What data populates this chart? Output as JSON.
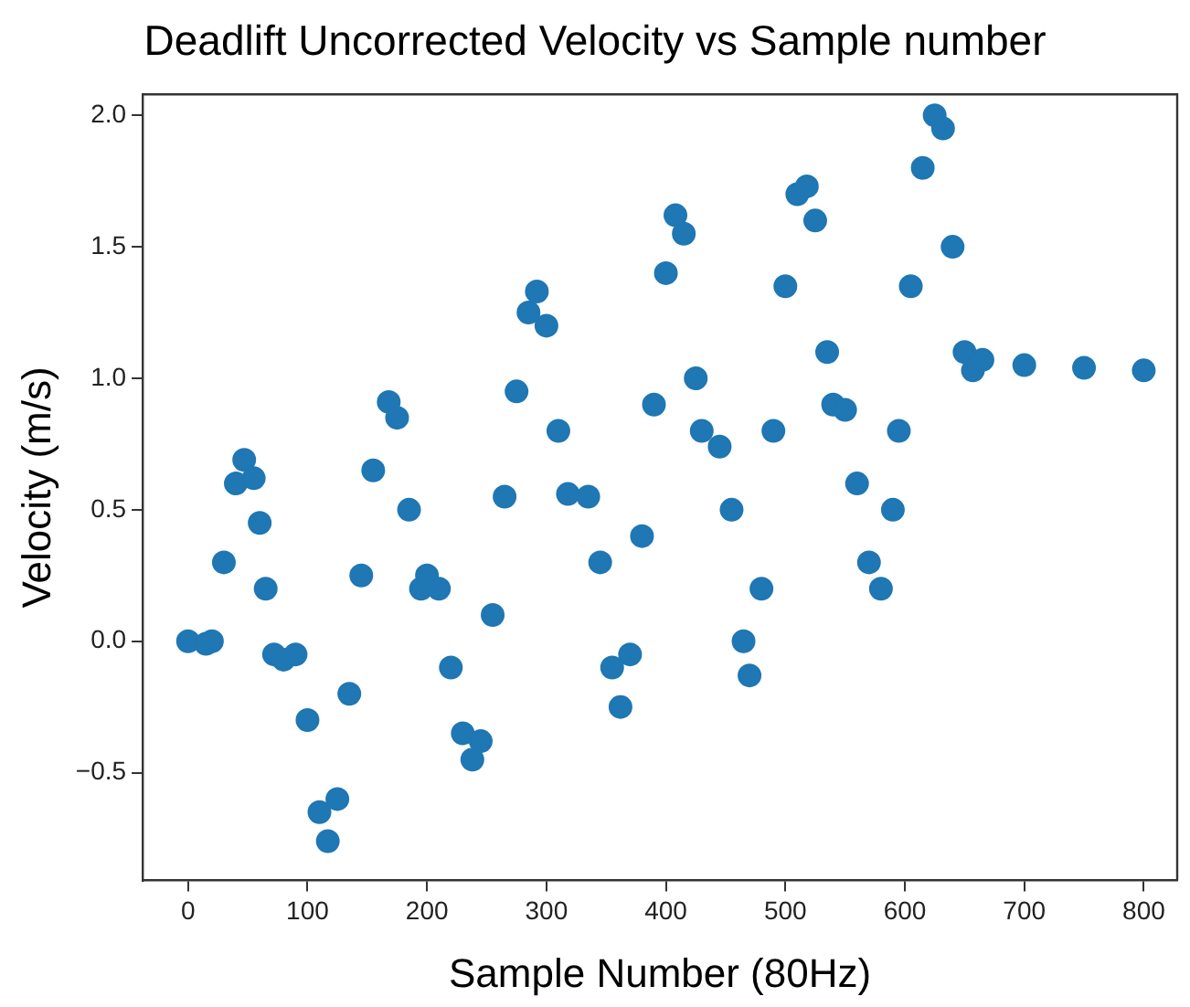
{
  "chart_data": {
    "type": "scatter",
    "title": "Deadlift Uncorrected Velocity vs Sample number",
    "xlabel": "Sample Number (80Hz)",
    "ylabel": "Velocity (m/s)",
    "x": [
      0,
      15,
      20,
      30,
      40,
      47,
      55,
      60,
      65,
      72,
      80,
      90,
      100,
      110,
      117,
      125,
      135,
      145,
      155,
      168,
      175,
      185,
      195,
      200,
      210,
      220,
      230,
      238,
      245,
      255,
      265,
      275,
      285,
      292,
      300,
      310,
      318,
      335,
      345,
      355,
      362,
      370,
      380,
      390,
      400,
      408,
      415,
      425,
      430,
      445,
      455,
      465,
      470,
      480,
      490,
      500,
      510,
      518,
      525,
      535,
      540,
      550,
      560,
      570,
      580,
      590,
      595,
      605,
      615,
      625,
      632,
      640,
      650,
      657,
      665,
      700,
      750,
      800
    ],
    "series": [
      {
        "color": "#1f77b4",
        "values": [
          0.0,
          -0.01,
          0.0,
          0.3,
          0.6,
          0.69,
          0.62,
          0.45,
          0.2,
          -0.05,
          -0.07,
          -0.05,
          -0.3,
          -0.65,
          -0.76,
          -0.6,
          -0.2,
          0.25,
          0.65,
          0.91,
          0.85,
          0.5,
          0.2,
          0.25,
          0.2,
          -0.1,
          -0.35,
          -0.45,
          -0.38,
          0.1,
          0.55,
          0.95,
          1.25,
          1.33,
          1.2,
          0.8,
          0.56,
          0.55,
          0.3,
          -0.1,
          -0.25,
          -0.05,
          0.4,
          0.9,
          1.4,
          1.62,
          1.55,
          1.0,
          0.8,
          0.74,
          0.5,
          0.0,
          -0.13,
          0.2,
          0.8,
          1.35,
          1.7,
          1.73,
          1.6,
          1.1,
          0.9,
          0.88,
          0.6,
          0.3,
          0.2,
          0.5,
          0.8,
          1.35,
          1.8,
          2.0,
          1.95,
          1.5,
          1.1,
          1.03,
          1.07,
          1.05,
          1.04,
          1.03
        ]
      }
    ],
    "xlim": [
      -38,
      828
    ],
    "ylim": [
      -0.91,
      2.08
    ],
    "xticks": [
      0,
      100,
      200,
      300,
      400,
      500,
      600,
      700,
      800
    ],
    "yticks": [
      {
        "value": -0.5,
        "label": "−0.5"
      },
      {
        "value": 0,
        "label": "0.0"
      },
      {
        "value": 0.5,
        "label": "0.5"
      },
      {
        "value": 1,
        "label": "1.0"
      },
      {
        "value": 1.5,
        "label": "1.5"
      },
      {
        "value": 2,
        "label": "2.0"
      }
    ],
    "grid": false,
    "legend": false,
    "marker": "circle"
  }
}
